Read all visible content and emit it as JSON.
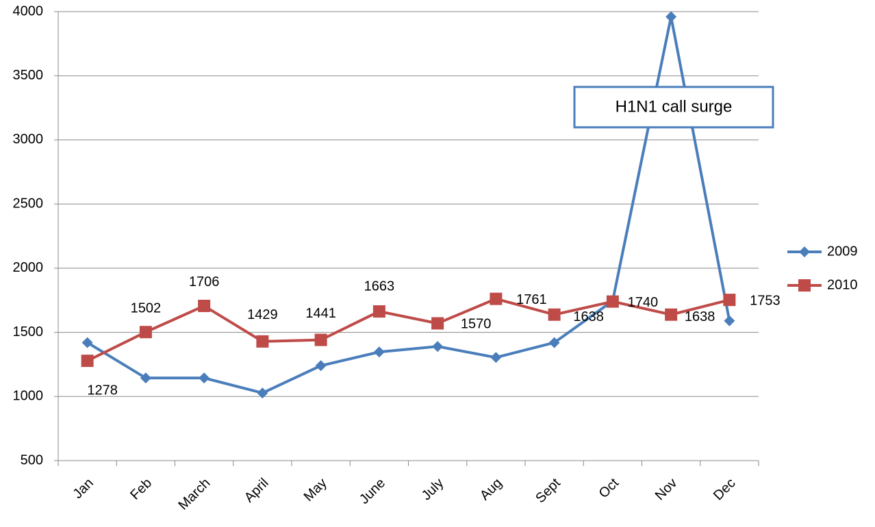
{
  "chart_data": {
    "type": "line",
    "categories": [
      "Jan",
      "Feb",
      "March",
      "April",
      "May",
      "June",
      "July",
      "Aug",
      "Sept",
      "Oct",
      "Nov",
      "Dec"
    ],
    "series": [
      {
        "name": "2009",
        "color": "#4a7ebb",
        "marker": "diamond",
        "values": [
          1420,
          1144,
          1144,
          1027,
          1240,
          1347,
          1390,
          1304,
          1420,
          1745,
          3960,
          1590
        ]
      },
      {
        "name": "2010",
        "color": "#be4b48",
        "marker": "square",
        "values": [
          1278,
          1502,
          1706,
          1429,
          1441,
          1663,
          1570,
          1761,
          1638,
          1740,
          1638,
          1753
        ],
        "data_labels": true
      }
    ],
    "ylim": [
      500,
      4000
    ],
    "yticks": [
      500,
      1000,
      1500,
      2000,
      2500,
      3000,
      3500,
      4000
    ],
    "grid": true,
    "legend": "right",
    "annotations": [
      {
        "text": "H1N1 call surge"
      }
    ]
  }
}
